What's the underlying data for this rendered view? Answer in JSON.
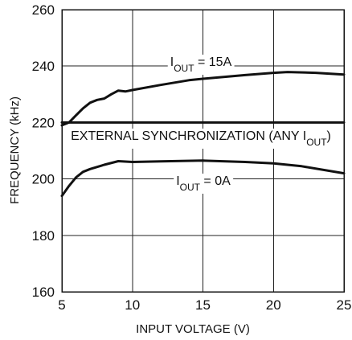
{
  "chart_data": {
    "type": "line",
    "title": "",
    "xlabel": "INPUT VOLTAGE (V)",
    "ylabel": "FREQUENCY (kHz)",
    "xlim": [
      5,
      25
    ],
    "ylim": [
      160,
      260
    ],
    "x_ticks": [
      5,
      10,
      15,
      20,
      25
    ],
    "x_tick_labels": [
      "5",
      "10",
      "15",
      "20",
      "25"
    ],
    "y_ticks": [
      160,
      180,
      200,
      220,
      240,
      260
    ],
    "y_tick_labels": [
      "160",
      "180",
      "200",
      "220",
      "240",
      "260"
    ],
    "grid": true,
    "legend": "none",
    "series": [
      {
        "name": "I_OUT = 15A",
        "label_main": "I",
        "label_sub": "OUT",
        "label_tail": " = 15A",
        "x": [
          5,
          5.5,
          6,
          6.5,
          7,
          7.5,
          8,
          8.5,
          9,
          9.5,
          10,
          12,
          14,
          15,
          18,
          20,
          21,
          23,
          25
        ],
        "y": [
          219,
          220,
          222.5,
          225,
          227,
          228,
          228.5,
          230,
          231.3,
          231,
          231.5,
          233.3,
          235,
          235.5,
          236.8,
          237.6,
          237.9,
          237.6,
          237
        ],
        "color": "#111111"
      },
      {
        "name": "EXTERNAL SYNCHRONIZATION (ANY I_OUT)",
        "label_main": "EXTERNAL SYNCHRONIZATION (ANY I",
        "label_sub": "OUT",
        "label_tail": ")",
        "x": [
          5,
          25
        ],
        "y": [
          220,
          220
        ],
        "color": "#111111"
      },
      {
        "name": "I_OUT = 0A",
        "label_main": "I",
        "label_sub": "OUT",
        "label_tail": " = 0A",
        "x": [
          5,
          5.5,
          6,
          6.5,
          7,
          8,
          9,
          10,
          12,
          15,
          18,
          20,
          22,
          25
        ],
        "y": [
          194,
          197.5,
          200.5,
          202.5,
          203.5,
          205,
          206.3,
          206,
          206.2,
          206.5,
          206,
          205.5,
          204.5,
          202
        ],
        "color": "#111111"
      }
    ]
  }
}
